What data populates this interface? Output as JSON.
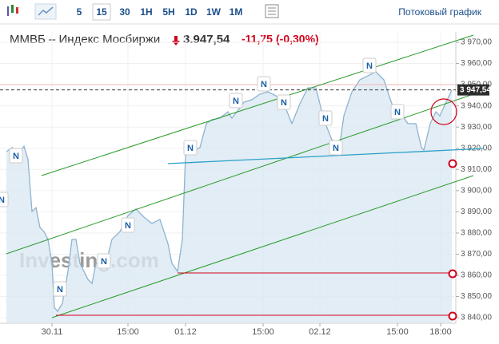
{
  "toolbar": {
    "periods": [
      "5",
      "15",
      "30",
      "1H",
      "5H",
      "1D",
      "1W",
      "1M"
    ],
    "active": "15",
    "link": "Потоковый график"
  },
  "header": {
    "title": "ММВБ – Индекс Мосбиржи",
    "price": "3.947,54",
    "change": "-11,75",
    "change_pct": "(-0,30%)"
  },
  "chart_data": {
    "type": "area",
    "watermark": "Investing.com",
    "news_label": "N",
    "color": "#8fb3cf",
    "fill": "#dbe8f2",
    "grid": true,
    "x": [
      0,
      1.4,
      3.4,
      4.4,
      5.4,
      6.4,
      7.4,
      8.4,
      9.4,
      10.4,
      11.4,
      12,
      12.8,
      14,
      15.4,
      16.4,
      17.4,
      18.4,
      20.4,
      21.4,
      22.4,
      24.4,
      25.4,
      26.4,
      28.4,
      30.4,
      32.4,
      34.4,
      36.4,
      38.4,
      40.4,
      41.4,
      42.8,
      44,
      44.8,
      46.4,
      48.4,
      50,
      51.4,
      53.4,
      55.4,
      56.4,
      58.4,
      59.4,
      61.4,
      63.4,
      65.4,
      67.4,
      69.4,
      71.4,
      73.4,
      75.4,
      77.4,
      79.4,
      81.4,
      83.4,
      84.4,
      86.4,
      88.4,
      90.4,
      92.4,
      94.4,
      96.4,
      98.4,
      100.4,
      102.4,
      103.8,
      104.4,
      106,
      107.4,
      108.4,
      111.4
    ],
    "values": [
      3918.4,
      3920.3,
      3918.4,
      3921.0,
      3914.7,
      3890.2,
      3892.0,
      3882.6,
      3880.7,
      3877.0,
      3865.6,
      3844.9,
      3843.0,
      3846.8,
      3861.9,
      3877.0,
      3877.0,
      3865.6,
      3858.1,
      3856.2,
      3865.6,
      3865.6,
      3869.4,
      3877.0,
      3880.7,
      3888.2,
      3891.3,
      3887.5,
      3884.5,
      3886.4,
      3875.0,
      3865.6,
      3861.9,
      3877.0,
      3916.5,
      3918.4,
      3920.3,
      3931.6,
      3933.5,
      3934.2,
      3937.2,
      3934.2,
      3939.1,
      3941.7,
      3942.9,
      3945.5,
      3946.6,
      3944.8,
      3941.0,
      3931.6,
      3941.0,
      3948.5,
      3948.5,
      3933.5,
      3924.0,
      3922.1,
      3935.3,
      3946.6,
      3952.3,
      3954.2,
      3956.1,
      3952.3,
      3941.0,
      3937.2,
      3931.6,
      3931.6,
      3920.3,
      3919.1,
      3931.6,
      3937.2,
      3935.3,
      3947.54
    ],
    "xlim": [
      0,
      112.4
    ],
    "xticks": [
      {
        "value": 11.4,
        "label": "30.11"
      },
      {
        "value": 30.4,
        "label": "15:00"
      },
      {
        "value": 44.8,
        "label": "01.12"
      },
      {
        "value": 64.2,
        "label": "15:00"
      },
      {
        "value": 78.4,
        "label": "02.12"
      },
      {
        "value": 97.8,
        "label": "15:00"
      },
      {
        "value": 108.6,
        "label": "18:00"
      }
    ],
    "ylim": [
      3837.4,
      3974.9
    ],
    "yticks": [
      {
        "value": 3840,
        "label": "3 840,00"
      },
      {
        "value": 3850,
        "label": "3 850,00"
      },
      {
        "value": 3860,
        "label": "3 860,00"
      },
      {
        "value": 3870,
        "label": "3 870,00"
      },
      {
        "value": 3880,
        "label": "3 880,00"
      },
      {
        "value": 3890,
        "label": "3 890,00"
      },
      {
        "value": 3900,
        "label": "3 900,00"
      },
      {
        "value": 3910,
        "label": "3 910,00"
      },
      {
        "value": 3920,
        "label": "3 920,00"
      },
      {
        "value": 3930,
        "label": "3 930,00"
      },
      {
        "value": 3940,
        "label": "3 940,00"
      },
      {
        "value": 3950,
        "label": "3 950,00"
      },
      {
        "value": 3960,
        "label": "3 960,00"
      },
      {
        "value": 3970,
        "label": "3 970,00"
      }
    ],
    "last_price": {
      "value": 3947.54,
      "label": "3 947,54"
    }
  }
}
